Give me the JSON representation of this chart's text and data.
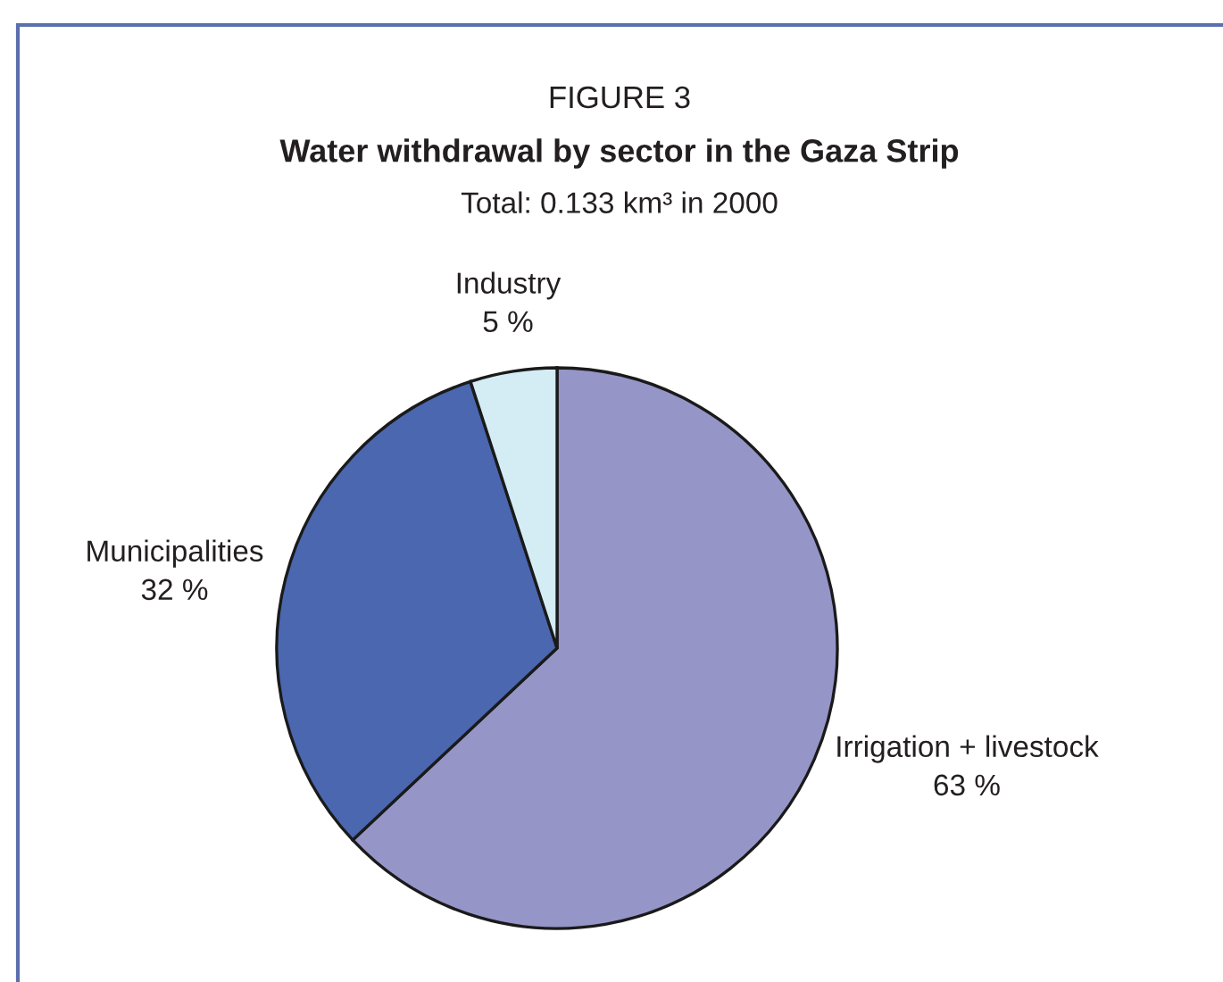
{
  "chart_data": {
    "type": "pie",
    "title": "Water withdrawal by sector in the Gaza Strip",
    "subtitle": "Total: 0.133 km³ in 2000",
    "annotations": [
      "FIGURE 3"
    ],
    "categories": [
      "Irrigation + livestock",
      "Municipalities",
      "Industry"
    ],
    "values": [
      63,
      32,
      5
    ],
    "colors": [
      "#9595c8",
      "#4a67b0",
      "#d4ecf4"
    ],
    "value_labels": [
      "63 %",
      "32 %",
      "5 %"
    ]
  }
}
